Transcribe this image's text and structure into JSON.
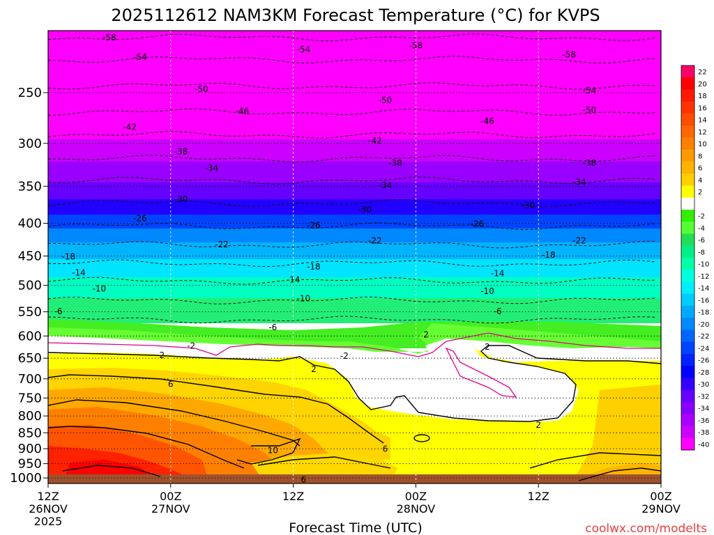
{
  "chart_data": {
    "type": "heatmap",
    "title": "2025112612 NAM3KM Forecast Temperature (°C) for KVPS",
    "xlabel": "Forecast Time (UTC)",
    "ylabel": "",
    "credit": "coolwx.com/modelts",
    "x_ticks": [
      {
        "hour": 0,
        "line1": "12Z",
        "line2": "26NOV",
        "line3": "2025"
      },
      {
        "hour": 12,
        "line1": "00Z",
        "line2": "27NOV",
        "line3": ""
      },
      {
        "hour": 24,
        "line1": "12Z",
        "line2": "",
        "line3": ""
      },
      {
        "hour": 36,
        "line1": "00Z",
        "line2": "28NOV",
        "line3": ""
      },
      {
        "hour": 48,
        "line1": "12Z",
        "line2": "",
        "line3": ""
      },
      {
        "hour": 60,
        "line1": "00Z",
        "line2": "29NOV",
        "line3": ""
      }
    ],
    "xlim": [
      0,
      60
    ],
    "y_ticks": [
      250,
      300,
      350,
      400,
      450,
      500,
      550,
      600,
      650,
      700,
      750,
      800,
      850,
      900,
      950,
      1000
    ],
    "ylim": [
      200,
      1020
    ],
    "y_scale": "log-pressure (inverted)",
    "grid": "dotted",
    "colorbar": [
      {
        "label": "22",
        "color": "#ff0066"
      },
      {
        "label": "20",
        "color": "#ff0000"
      },
      {
        "label": "18",
        "color": "#ff1a00"
      },
      {
        "label": "16",
        "color": "#ff3300"
      },
      {
        "label": "14",
        "color": "#ff4d00"
      },
      {
        "label": "12",
        "color": "#ff6600"
      },
      {
        "label": "10",
        "color": "#ff8000"
      },
      {
        "label": "8",
        "color": "#ff9a00"
      },
      {
        "label": "6",
        "color": "#ffb300"
      },
      {
        "label": "4",
        "color": "#ffd000"
      },
      {
        "label": "2",
        "color": "#ffff00"
      },
      {
        "label": "",
        "color": "#ffffff"
      },
      {
        "label": "-2",
        "color": "#33ee00"
      },
      {
        "label": "-4",
        "color": "#55ff33"
      },
      {
        "label": "-6",
        "color": "#22dd55"
      },
      {
        "label": "-8",
        "color": "#00ee88"
      },
      {
        "label": "-10",
        "color": "#00ffaa"
      },
      {
        "label": "-12",
        "color": "#00ffdd"
      },
      {
        "label": "-14",
        "color": "#00eeff"
      },
      {
        "label": "-16",
        "color": "#00ccff"
      },
      {
        "label": "-18",
        "color": "#00aaff"
      },
      {
        "label": "-20",
        "color": "#0088ff"
      },
      {
        "label": "-22",
        "color": "#0066ff"
      },
      {
        "label": "-24",
        "color": "#0044ff"
      },
      {
        "label": "-26",
        "color": "#0022ff"
      },
      {
        "label": "-28",
        "color": "#0000ff"
      },
      {
        "label": "-30",
        "color": "#3300ff"
      },
      {
        "label": "-32",
        "color": "#6600ff"
      },
      {
        "label": "-34",
        "color": "#8800ff"
      },
      {
        "label": "-36",
        "color": "#aa00ff"
      },
      {
        "label": "-38",
        "color": "#cc00ff"
      },
      {
        "label": "-40",
        "color": "#ff00ff"
      }
    ],
    "levels": [
      {
        "temp": -58,
        "p": 205
      },
      {
        "temp": -54,
        "p": 222
      },
      {
        "temp": -50,
        "p": 244
      },
      {
        "temp": -46,
        "p": 268
      },
      {
        "temp": -42,
        "p": 291
      },
      {
        "temp": -38,
        "p": 317
      },
      {
        "temp": -34,
        "p": 343
      },
      {
        "temp": -30,
        "p": 372
      },
      {
        "temp": -26,
        "p": 404
      },
      {
        "temp": -22,
        "p": 432
      },
      {
        "temp": -18,
        "p": 462
      },
      {
        "temp": -14,
        "p": 492
      },
      {
        "temp": -10,
        "p": 528
      },
      {
        "temp": -6,
        "p": 566
      }
    ],
    "contour_labels": [
      {
        "text": "-58",
        "hour": 6,
        "p": 205
      },
      {
        "text": "-58",
        "hour": 36,
        "p": 211
      },
      {
        "text": "-58",
        "hour": 51,
        "p": 218
      },
      {
        "text": "-54",
        "hour": 9,
        "p": 220
      },
      {
        "text": "-54",
        "hour": 25,
        "p": 214
      },
      {
        "text": "-54",
        "hour": 53,
        "p": 248
      },
      {
        "text": "-50",
        "hour": 15,
        "p": 247
      },
      {
        "text": "-50",
        "hour": 33,
        "p": 257
      },
      {
        "text": "-50",
        "hour": 53,
        "p": 266
      },
      {
        "text": "-46",
        "hour": 19,
        "p": 267
      },
      {
        "text": "-46",
        "hour": 43,
        "p": 277
      },
      {
        "text": "-42",
        "hour": 8,
        "p": 283
      },
      {
        "text": "-42",
        "hour": 32,
        "p": 297
      },
      {
        "text": "-38",
        "hour": 13,
        "p": 309
      },
      {
        "text": "-38",
        "hour": 34,
        "p": 322
      },
      {
        "text": "-38",
        "hour": 53,
        "p": 322
      },
      {
        "text": "-34",
        "hour": 16,
        "p": 328
      },
      {
        "text": "-34",
        "hour": 33,
        "p": 349
      },
      {
        "text": "-34",
        "hour": 52,
        "p": 345
      },
      {
        "text": "-30",
        "hour": 13,
        "p": 367
      },
      {
        "text": "-30",
        "hour": 31,
        "p": 381
      },
      {
        "text": "-30",
        "hour": 47,
        "p": 375
      },
      {
        "text": "-26",
        "hour": 9,
        "p": 393
      },
      {
        "text": "-26",
        "hour": 26,
        "p": 403
      },
      {
        "text": "-26",
        "hour": 42,
        "p": 401
      },
      {
        "text": "-22",
        "hour": 17,
        "p": 432
      },
      {
        "text": "-22",
        "hour": 32,
        "p": 426
      },
      {
        "text": "-22",
        "hour": 52,
        "p": 426
      },
      {
        "text": "-18",
        "hour": 2,
        "p": 451
      },
      {
        "text": "-18",
        "hour": 26,
        "p": 468
      },
      {
        "text": "-18",
        "hour": 49,
        "p": 448
      },
      {
        "text": "-14",
        "hour": 3,
        "p": 478
      },
      {
        "text": "-14",
        "hour": 24,
        "p": 490
      },
      {
        "text": "-14",
        "hour": 44,
        "p": 479
      },
      {
        "text": "-10",
        "hour": 5,
        "p": 506
      },
      {
        "text": "-10",
        "hour": 25,
        "p": 524
      },
      {
        "text": "-10",
        "hour": 43,
        "p": 511
      },
      {
        "text": "-6",
        "hour": 1,
        "p": 549
      },
      {
        "text": "-6",
        "hour": 22,
        "p": 582
      },
      {
        "text": "-6",
        "hour": 44,
        "p": 549
      },
      {
        "text": "-2",
        "hour": 14,
        "p": 622
      },
      {
        "text": "-2",
        "hour": 29,
        "p": 645
      },
      {
        "text": "-2",
        "hour": 11,
        "p": 643
      },
      {
        "text": "2",
        "hour": 26,
        "p": 676
      },
      {
        "text": "2",
        "hour": 37,
        "p": 597
      },
      {
        "text": "2",
        "hour": 43,
        "p": 624
      },
      {
        "text": "2",
        "hour": 48,
        "p": 826
      },
      {
        "text": "6",
        "hour": 12,
        "p": 714
      },
      {
        "text": "6",
        "hour": 33,
        "p": 901
      },
      {
        "text": "6",
        "hour": 25,
        "p": 1006
      },
      {
        "text": "10",
        "hour": 22,
        "p": 905
      }
    ]
  }
}
